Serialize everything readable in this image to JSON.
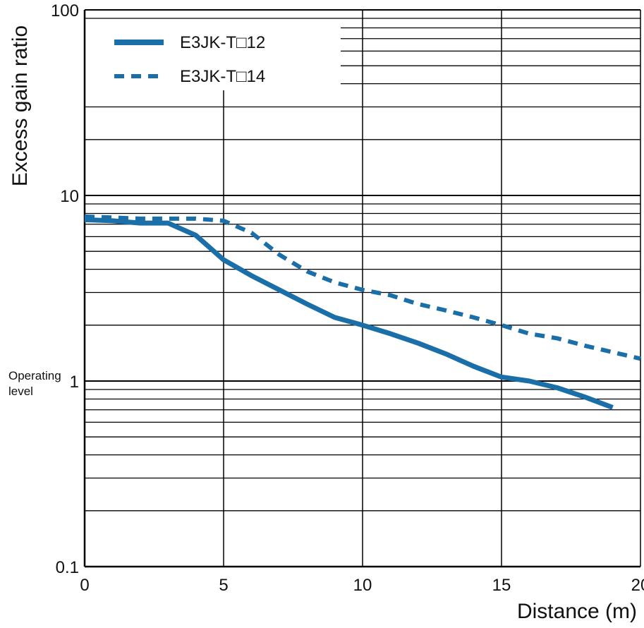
{
  "chart_data": {
    "type": "line",
    "xlabel": "Distance (m)",
    "ylabel": "Excess gain ratio",
    "xlim": [
      0,
      20
    ],
    "ylim": [
      0.1,
      100
    ],
    "yscale": "log",
    "grid": true,
    "legend_position": "top-left",
    "x_ticks": [
      "0",
      "5",
      "10",
      "15",
      "20"
    ],
    "y_ticks": [
      "0.1",
      "1",
      "10",
      "100"
    ],
    "annotation": {
      "line1": "Operating",
      "line2": "level"
    },
    "colors": {
      "series": "#1b6fa8",
      "grid": "#000000"
    },
    "series": [
      {
        "name": "E3JK-T□12",
        "style": "solid",
        "x": [
          0,
          1,
          2,
          3,
          4,
          5,
          6,
          7,
          8,
          9,
          10,
          11,
          12,
          13,
          14,
          15,
          16,
          17,
          18,
          19
        ],
        "y": [
          7.4,
          7.3,
          7.1,
          7.1,
          6.1,
          4.5,
          3.7,
          3.1,
          2.6,
          2.2,
          2.0,
          1.8,
          1.6,
          1.4,
          1.2,
          1.05,
          1.0,
          0.92,
          0.82,
          0.72
        ]
      },
      {
        "name": "E3JK-T□14",
        "style": "dashed",
        "x": [
          0,
          1,
          2,
          3,
          4,
          5,
          6,
          7,
          8,
          9,
          10,
          11,
          12,
          13,
          14,
          15,
          16,
          17,
          18,
          19,
          20
        ],
        "y": [
          7.7,
          7.6,
          7.5,
          7.5,
          7.5,
          7.3,
          6.3,
          4.8,
          3.9,
          3.4,
          3.1,
          2.9,
          2.6,
          2.4,
          2.2,
          2.0,
          1.8,
          1.7,
          1.55,
          1.43,
          1.32
        ]
      }
    ]
  }
}
